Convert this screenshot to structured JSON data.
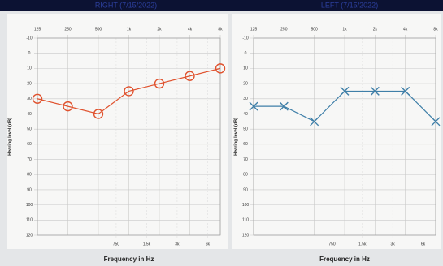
{
  "chart_data": [
    {
      "type": "line",
      "title": "RIGHT (7/15/2022)",
      "xlabel": "Frequency in Hz",
      "ylabel": "Hearing level (dB)",
      "log_x": true,
      "xlim": [
        125,
        8000
      ],
      "ylim": [
        120,
        -10
      ],
      "x": [
        125,
        250,
        500,
        1000,
        2000,
        4000,
        8000
      ],
      "series": [
        {
          "color": "#e0522e",
          "marker": "o",
          "values": [
            30,
            35,
            40,
            25,
            20,
            15,
            10
          ]
        }
      ],
      "xticks_top": [
        125,
        250,
        500,
        {
          "value": 1000,
          "label": "1k"
        },
        {
          "value": 2000,
          "label": "2k"
        },
        {
          "value": 4000,
          "label": "4k"
        },
        {
          "value": 8000,
          "label": "8k"
        }
      ],
      "xticks_bottom": [
        750,
        {
          "value": 1500,
          "label": "1.5k"
        },
        {
          "value": 3000,
          "label": "3k"
        },
        {
          "value": 6000,
          "label": "6k"
        }
      ],
      "yticks": [
        -10,
        0,
        10,
        20,
        30,
        40,
        50,
        60,
        70,
        80,
        90,
        100,
        110,
        120
      ],
      "grid": true
    },
    {
      "type": "line",
      "title": "LEFT (7/15/2022)",
      "xlabel": "Frequency in Hz",
      "ylabel": "Hearing level (dB)",
      "log_x": true,
      "xlim": [
        125,
        8000
      ],
      "ylim": [
        120,
        -10
      ],
      "x": [
        125,
        250,
        500,
        1000,
        2000,
        4000,
        8000
      ],
      "series": [
        {
          "color": "#3f7fa8",
          "marker": "x",
          "values": [
            35,
            35,
            45,
            25,
            25,
            25,
            45
          ]
        }
      ],
      "xticks_top": [
        125,
        250,
        500,
        {
          "value": 1000,
          "label": "1k"
        },
        {
          "value": 2000,
          "label": "2k"
        },
        {
          "value": 4000,
          "label": "4k"
        },
        {
          "value": 8000,
          "label": "8k"
        }
      ],
      "xticks_bottom": [
        750,
        {
          "value": 1500,
          "label": "1.5k"
        },
        {
          "value": 3000,
          "label": "3k"
        },
        {
          "value": 6000,
          "label": "6k"
        }
      ],
      "yticks": [
        -10,
        0,
        10,
        20,
        30,
        40,
        50,
        60,
        70,
        80,
        90,
        100,
        110,
        120
      ],
      "grid": true
    }
  ]
}
